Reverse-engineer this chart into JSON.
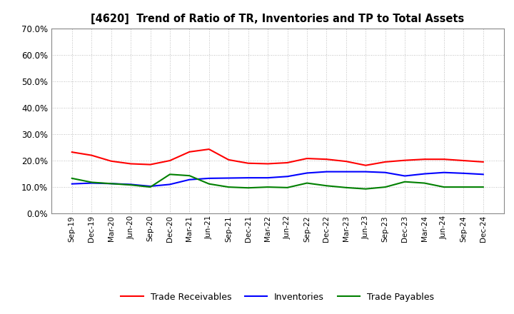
{
  "title": "[4620]  Trend of Ratio of TR, Inventories and TP to Total Assets",
  "x_labels": [
    "Sep-19",
    "Dec-19",
    "Mar-20",
    "Jun-20",
    "Sep-20",
    "Dec-20",
    "Mar-21",
    "Jun-21",
    "Sep-21",
    "Dec-21",
    "Mar-22",
    "Jun-22",
    "Sep-22",
    "Dec-22",
    "Mar-23",
    "Jun-23",
    "Sep-23",
    "Dec-23",
    "Mar-24",
    "Jun-24",
    "Sep-24",
    "Dec-24"
  ],
  "trade_receivables": [
    0.232,
    0.22,
    0.198,
    0.188,
    0.185,
    0.2,
    0.233,
    0.243,
    0.203,
    0.19,
    0.188,
    0.192,
    0.208,
    0.205,
    0.197,
    0.182,
    0.195,
    0.201,
    0.205,
    0.205,
    0.2,
    0.195
  ],
  "inventories": [
    0.112,
    0.115,
    0.113,
    0.11,
    0.103,
    0.11,
    0.128,
    0.133,
    0.134,
    0.135,
    0.135,
    0.14,
    0.153,
    0.158,
    0.158,
    0.158,
    0.155,
    0.142,
    0.15,
    0.155,
    0.152,
    0.148
  ],
  "trade_payables": [
    0.133,
    0.118,
    0.113,
    0.108,
    0.1,
    0.148,
    0.143,
    0.112,
    0.1,
    0.097,
    0.1,
    0.098,
    0.115,
    0.105,
    0.098,
    0.093,
    0.1,
    0.12,
    0.115,
    0.1,
    0.1,
    0.1
  ],
  "tr_color": "#ff0000",
  "inv_color": "#0000ff",
  "tp_color": "#008000",
  "ylim": [
    0.0,
    0.7
  ],
  "yticks": [
    0.0,
    0.1,
    0.2,
    0.3,
    0.4,
    0.5,
    0.6,
    0.7
  ],
  "background_color": "#ffffff",
  "grid_color": "#aaaaaa"
}
